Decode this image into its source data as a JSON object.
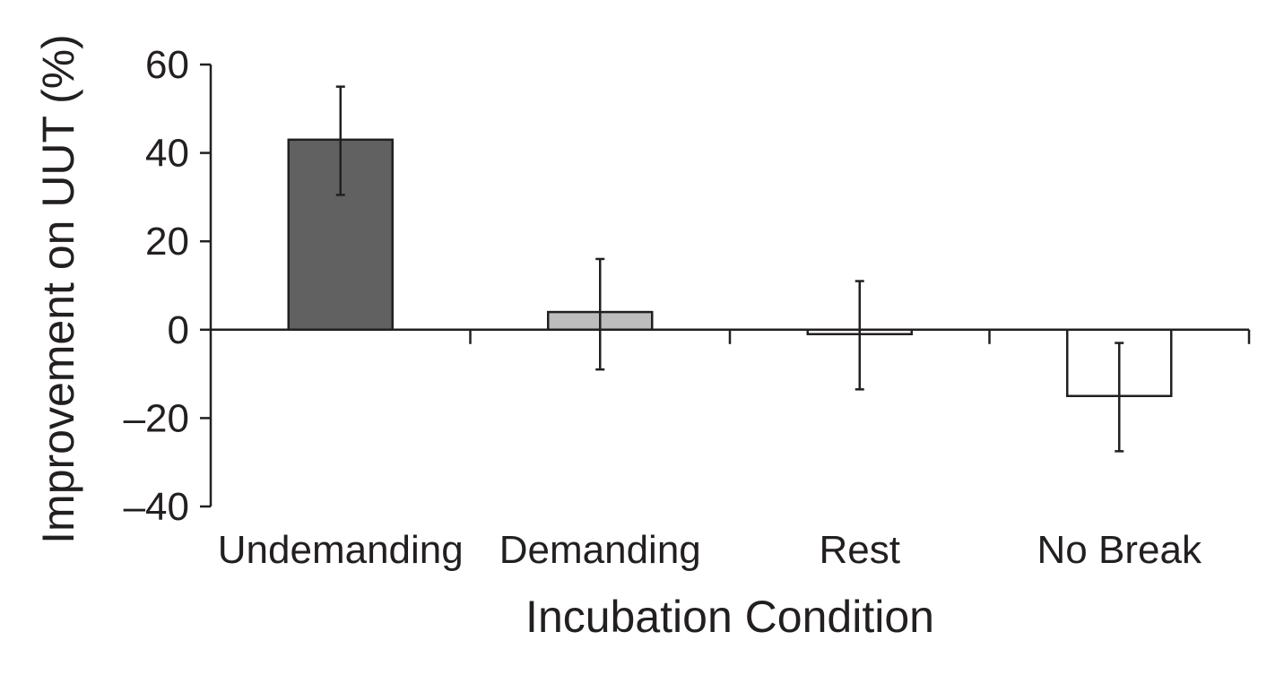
{
  "chart_data": {
    "type": "bar",
    "categories": [
      "Undemanding",
      "Demanding",
      "Rest",
      "No Break"
    ],
    "values": [
      43,
      4,
      -1,
      -15
    ],
    "error_bars": {
      "upper": [
        55,
        16,
        11,
        -3
      ],
      "lower": [
        30.5,
        -9,
        -13.5,
        -27.5
      ]
    },
    "bar_colors": [
      "#616161",
      "#bdbdbd",
      "#ffffff",
      "#ffffff"
    ],
    "bar_stroke": "#231f20",
    "xlabel": "Incubation Condition",
    "ylabel": "Improvement on UUT (%)",
    "ylim": [
      -40,
      60
    ],
    "yticks": [
      60,
      40,
      20,
      0,
      -20,
      -40
    ],
    "ytick_labels": [
      "60",
      "40",
      "20",
      "0",
      "–20",
      "–40"
    ],
    "grid": false,
    "legend": "none"
  }
}
